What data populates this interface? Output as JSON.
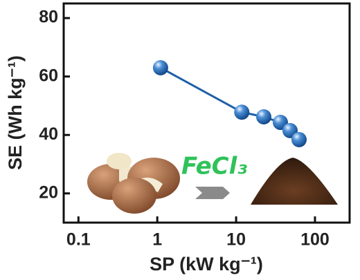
{
  "chart_data": {
    "type": "line",
    "xscale": "log",
    "x_label": "SP (kW kg⁻¹)",
    "y_label": "SE (Wh kg⁻¹)",
    "x": [
      1.1,
      11.8,
      22.4,
      36.4,
      48.3,
      62.8
    ],
    "values": [
      63,
      47.8,
      46.2,
      44.3,
      41.5,
      38.4
    ],
    "color": "#1f5fa8",
    "xlim": [
      0.065,
      275
    ],
    "xticks": [
      0.1,
      1,
      10,
      100
    ],
    "ylim": [
      10,
      85
    ],
    "yticks": [
      20,
      40,
      60,
      80
    ],
    "annotation": "FeCl₃"
  }
}
